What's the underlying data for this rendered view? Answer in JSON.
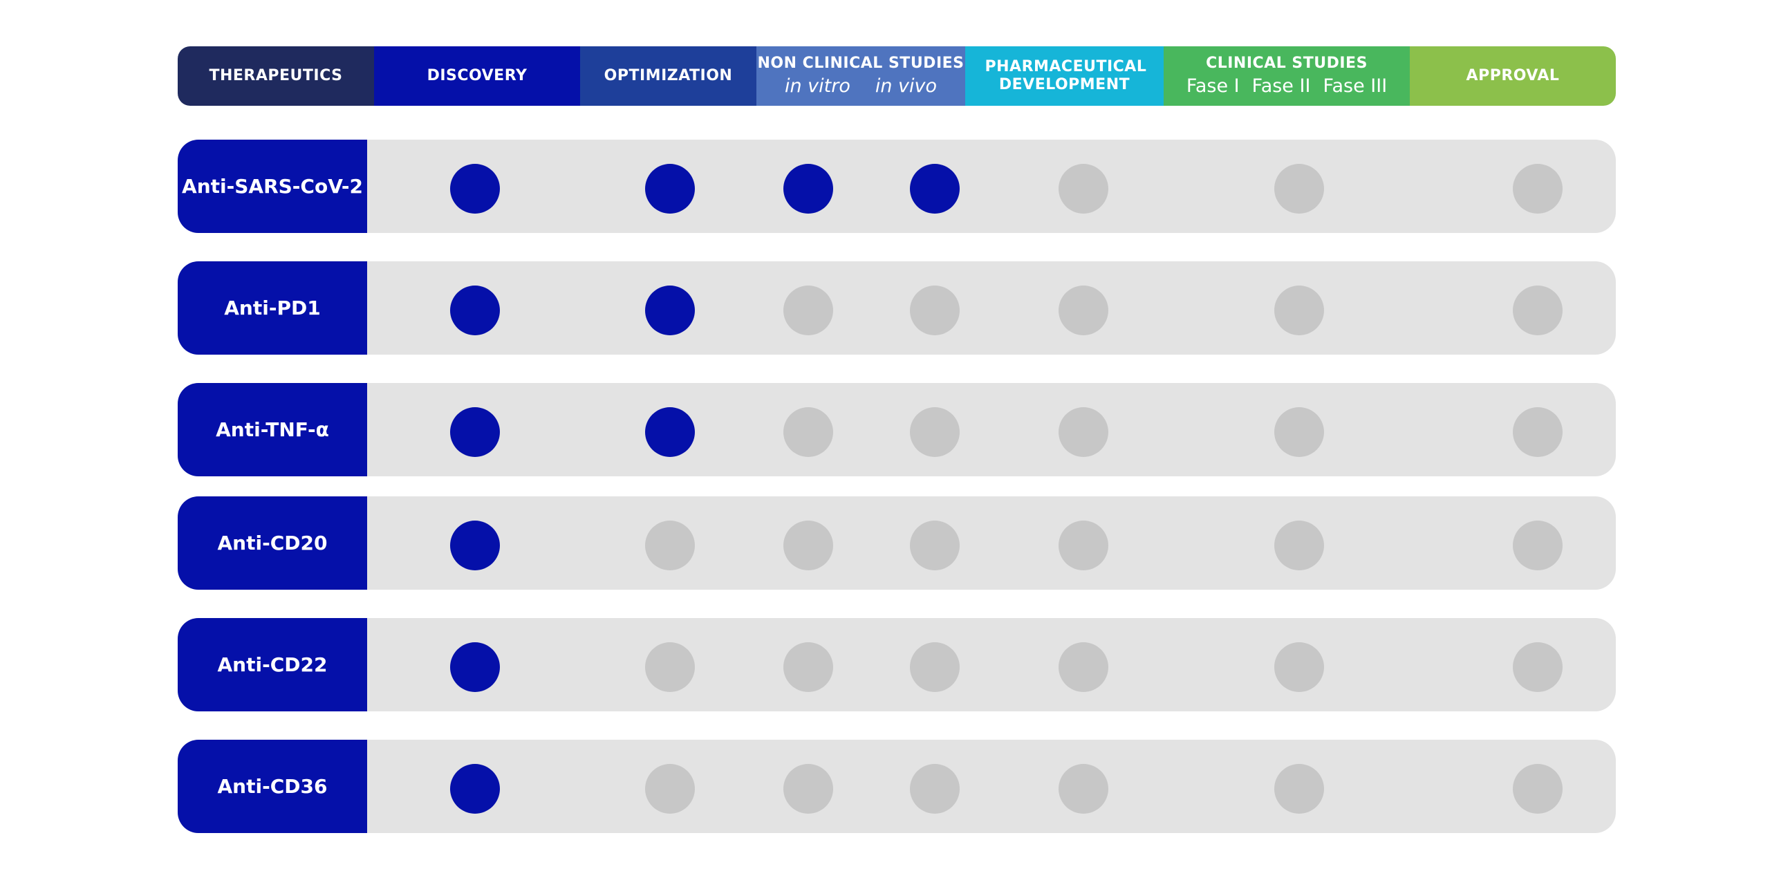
{
  "header": {
    "stages": [
      {
        "key": "therapeutics",
        "label": "THERAPEUTICS",
        "sub": [],
        "color": "#1f2a5e"
      },
      {
        "key": "discovery",
        "label": "DISCOVERY",
        "sub": [],
        "color": "#0510a9"
      },
      {
        "key": "optimization",
        "label": "OPTIMIZATION",
        "sub": [],
        "color": "#1e3f9a"
      },
      {
        "key": "nonclinical",
        "label": "NON CLINICAL STUDIES",
        "sub": [
          "in vitro",
          "in vivo"
        ],
        "italic": true,
        "color": "#4f74bf"
      },
      {
        "key": "pharma",
        "label": "PHARMACEUTICAL DEVELOPMENT",
        "sub": [],
        "color": "#16b5d8"
      },
      {
        "key": "clinical",
        "label": "CLINICAL STUDIES",
        "sub": [
          "Fase I",
          "Fase II",
          "Fase III"
        ],
        "color": "#49b75d"
      },
      {
        "key": "approval",
        "label": "APPROVAL",
        "sub": [],
        "color": "#8cc04b"
      }
    ]
  },
  "colors": {
    "completed": "#0510a9",
    "pending": "#c7c7c7",
    "row_bg": "#e3e3e3"
  },
  "rows": [
    {
      "name": "Anti-SARS-CoV-2",
      "completed_steps": 4
    },
    {
      "name": "Anti-PD1",
      "completed_steps": 2
    },
    {
      "name": "Anti-TNF-α",
      "completed_steps": 2
    },
    {
      "name": "Anti-CD20",
      "completed_steps": 1
    },
    {
      "name": "Anti-CD22",
      "completed_steps": 1
    },
    {
      "name": "Anti-CD36",
      "completed_steps": 1
    }
  ],
  "total_steps": 7
}
